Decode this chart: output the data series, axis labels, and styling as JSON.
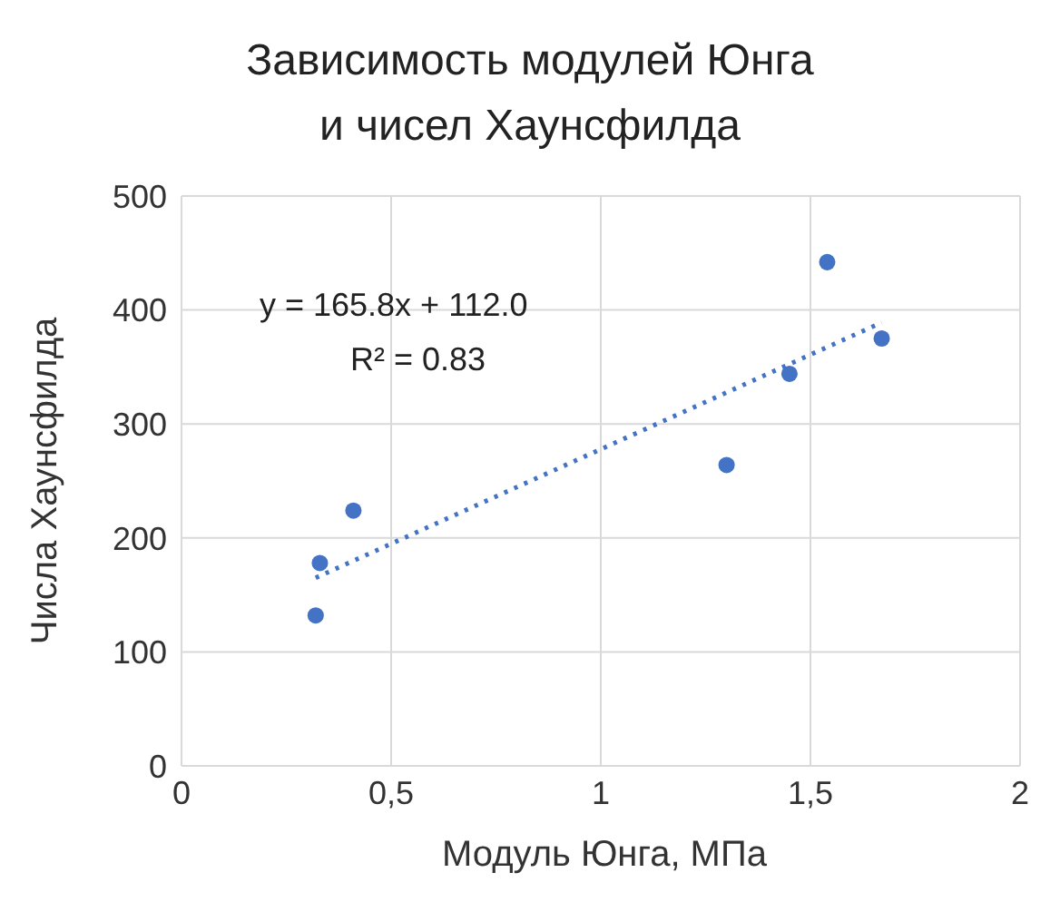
{
  "chart_data": {
    "type": "scatter",
    "title": "Зависимость модулей Юнга\nи чисел Хаунсфилда",
    "xlabel": "Модуль Юнга, МПа",
    "ylabel": "Числа Хаунсфилда",
    "x": [
      0.32,
      0.33,
      0.41,
      1.3,
      1.45,
      1.54,
      1.67
    ],
    "series": [
      {
        "color": "#4472c4",
        "values": [
          132,
          178,
          224,
          264,
          344,
          442,
          375
        ],
        "marker": "circle"
      },
      {
        "type": "line",
        "color": "#4472c4",
        "x": [
          0.32,
          1.67
        ],
        "values": [
          165,
          389
        ],
        "line_style": "dotted",
        "marker": "none"
      }
    ],
    "annotations": [
      "y = 165.8x + 112.0",
      "R² = 0.83"
    ],
    "xlim": [
      0,
      2
    ],
    "xticks": [
      0,
      {
        "value": 0.5,
        "label": "0,5"
      },
      1,
      {
        "value": 1.5,
        "label": "1,5"
      },
      2
    ],
    "ylim": [
      0,
      500
    ],
    "yticks": [
      0,
      100,
      200,
      300,
      400,
      500
    ],
    "grid": true,
    "legend": false
  }
}
